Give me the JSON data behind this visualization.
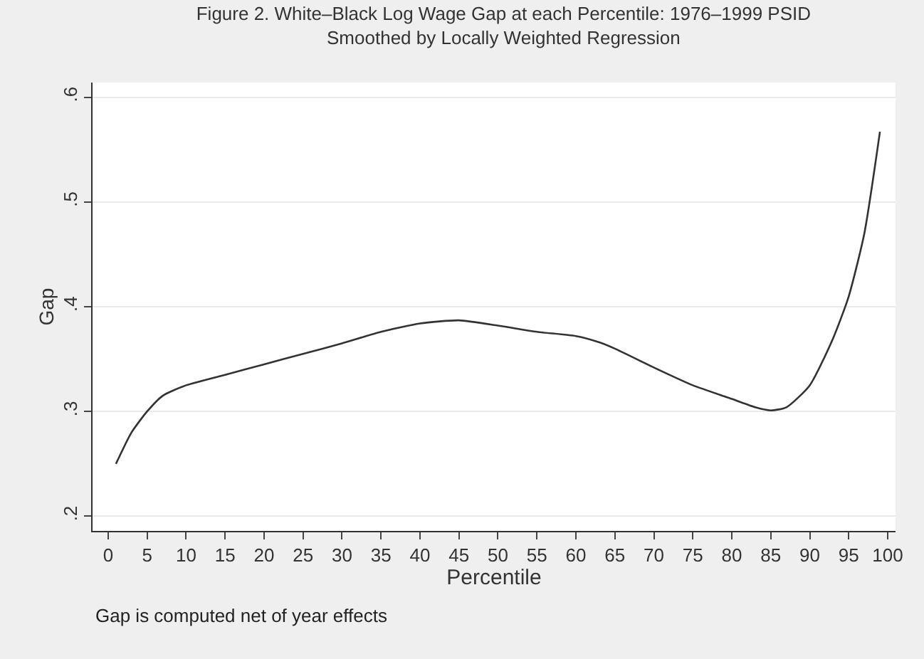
{
  "chart_data": {
    "type": "line",
    "title": "Figure 2. White–Black Log Wage Gap at each Percentile: 1976–1999 PSID",
    "subtitle": "Smoothed by Locally Weighted Regression",
    "xlabel": "Percentile",
    "ylabel": "Gap",
    "annotations": [
      "Gap is computed net of year effects"
    ],
    "x": [
      1,
      3,
      5,
      7,
      10,
      15,
      20,
      25,
      30,
      35,
      40,
      45,
      50,
      55,
      60,
      63,
      65,
      70,
      75,
      80,
      83,
      85,
      87,
      90,
      93,
      95,
      97,
      99
    ],
    "series": [
      {
        "color": "#333333",
        "values": [
          0.25,
          0.28,
          0.3,
          0.315,
          0.325,
          0.335,
          0.345,
          0.355,
          0.365,
          0.376,
          0.384,
          0.387,
          0.382,
          0.376,
          0.372,
          0.366,
          0.36,
          0.342,
          0.325,
          0.312,
          0.304,
          0.301,
          0.304,
          0.325,
          0.37,
          0.41,
          0.47,
          0.567
        ]
      }
    ],
    "xlim": [
      -2,
      101
    ],
    "ylim": [
      0.186,
      0.614
    ],
    "xticks": [
      0,
      5,
      10,
      15,
      20,
      25,
      30,
      35,
      40,
      45,
      50,
      55,
      60,
      65,
      70,
      75,
      80,
      85,
      90,
      95,
      100
    ],
    "yticks": [
      {
        "value": 0.2,
        "label": ".2"
      },
      {
        "value": 0.3,
        "label": ".3"
      },
      {
        "value": 0.4,
        "label": ".4"
      },
      {
        "value": 0.5,
        "label": ".5"
      },
      {
        "value": 0.6,
        "label": ".6"
      }
    ],
    "grid": "y",
    "legend": false,
    "marker": "none",
    "line_style": "solid"
  }
}
